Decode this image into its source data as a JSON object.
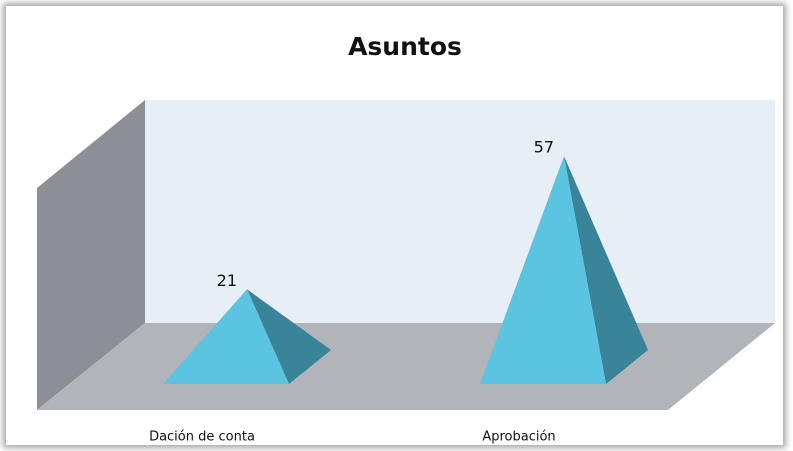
{
  "chart_data": {
    "type": "pyramid",
    "title": "Asuntos",
    "categories": [
      "Dación de conta",
      "Aprobación"
    ],
    "values": [
      21,
      57
    ],
    "color": "#5bc4e0",
    "ylim": [
      0,
      60
    ]
  }
}
